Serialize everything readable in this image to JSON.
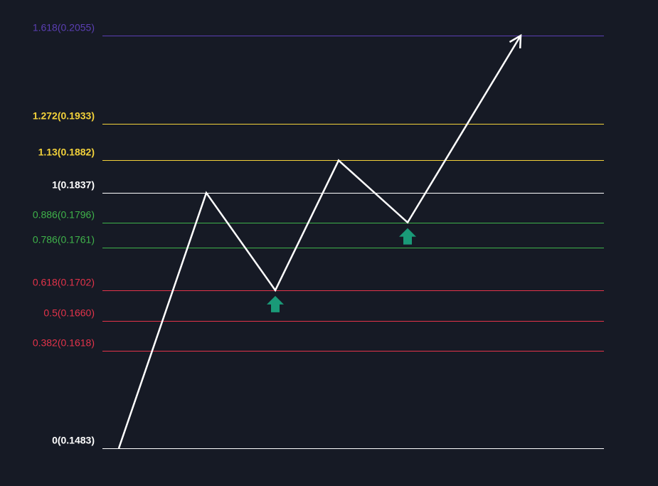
{
  "chart_data": {
    "type": "line",
    "title": "",
    "xlabel": "",
    "ylabel": "",
    "ylim": [
      0.1483,
      0.2055
    ],
    "levels": [
      {
        "label": "1.618(0.2055)",
        "ratio": 1.618,
        "value": 0.2055,
        "color": "#5b3fb3",
        "bold": false
      },
      {
        "label": "1.272(0.1933)",
        "ratio": 1.272,
        "value": 0.1933,
        "color": "#f2d13a",
        "bold": true
      },
      {
        "label": "1.13(0.1882)",
        "ratio": 1.13,
        "value": 0.1882,
        "color": "#f2d13a",
        "bold": true
      },
      {
        "label": "1(0.1837)",
        "ratio": 1.0,
        "value": 0.1837,
        "color": "#ffffff",
        "bold": true
      },
      {
        "label": "0.886(0.1796)",
        "ratio": 0.886,
        "value": 0.1796,
        "color": "#3fb34a",
        "bold": false
      },
      {
        "label": "0.786(0.1761)",
        "ratio": 0.786,
        "value": 0.1761,
        "color": "#3fb34a",
        "bold": false
      },
      {
        "label": "0.618(0.1702)",
        "ratio": 0.618,
        "value": 0.1702,
        "color": "#e3334a",
        "bold": false
      },
      {
        "label": "0.5(0.1660)",
        "ratio": 0.5,
        "value": 0.166,
        "color": "#e3334a",
        "bold": false
      },
      {
        "label": "0.382(0.1618)",
        "ratio": 0.382,
        "value": 0.1618,
        "color": "#e3334a",
        "bold": false
      },
      {
        "label": "0(0.1483)",
        "ratio": 0,
        "value": 0.1483,
        "color": "#ffffff",
        "bold": true
      }
    ],
    "path": {
      "color": "#ffffff",
      "x": [
        0,
        1,
        2,
        3,
        4,
        5
      ],
      "y": [
        0.1483,
        0.1837,
        0.1702,
        0.1882,
        0.1796,
        0.2055
      ],
      "arrowhead": true
    },
    "markers": [
      {
        "type": "up-arrow",
        "x": 2,
        "at_level": 0.1702,
        "color": "#1a9a78"
      },
      {
        "type": "up-arrow",
        "x": 4,
        "at_level": 0.1796,
        "color": "#1a9a78"
      }
    ]
  }
}
